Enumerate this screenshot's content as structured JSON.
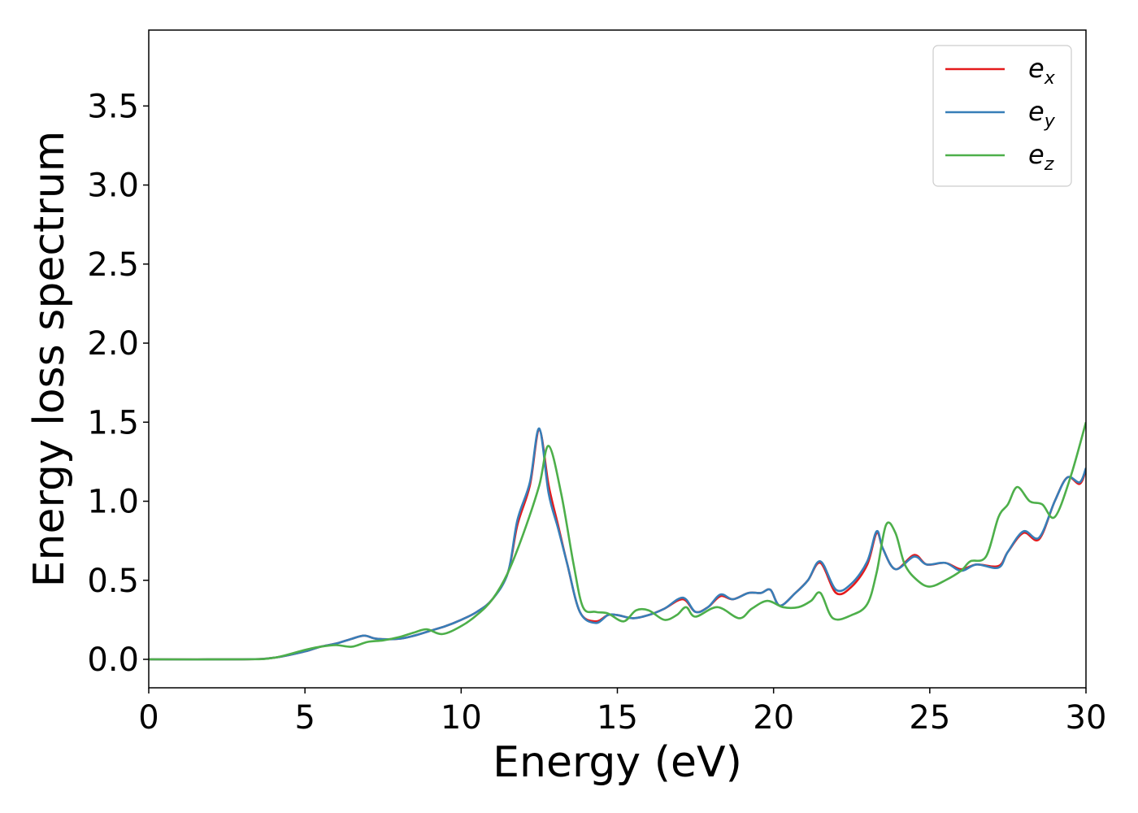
{
  "chart_data": {
    "type": "line",
    "xlabel": "Energy (eV)",
    "ylabel": "Energy loss spectrum",
    "xlim": [
      0,
      30
    ],
    "ylim": [
      -0.18,
      3.98
    ],
    "xticks": [
      0,
      5,
      10,
      15,
      20,
      25,
      30
    ],
    "xtick_labels": [
      "0",
      "5",
      "10",
      "15",
      "20",
      "25",
      "30"
    ],
    "yticks": [
      0.0,
      0.5,
      1.0,
      1.5,
      2.0,
      2.5,
      3.0,
      3.5
    ],
    "ytick_labels": [
      "0.0",
      "0.5",
      "1.0",
      "1.5",
      "2.0",
      "2.5",
      "3.0",
      "3.5"
    ],
    "grid": false,
    "legend_position": "top-right",
    "series": [
      {
        "name": "e_x",
        "legend_base": "e",
        "legend_sub": "x",
        "color": "#e41a1c",
        "points": [
          [
            0,
            0
          ],
          [
            3,
            0
          ],
          [
            4,
            0.01
          ],
          [
            5,
            0.05
          ],
          [
            5.5,
            0.08
          ],
          [
            6,
            0.1
          ],
          [
            6.5,
            0.13
          ],
          [
            6.9,
            0.15
          ],
          [
            7.3,
            0.13
          ],
          [
            8,
            0.13
          ],
          [
            8.5,
            0.15
          ],
          [
            9,
            0.18
          ],
          [
            9.5,
            0.21
          ],
          [
            10,
            0.25
          ],
          [
            10.5,
            0.3
          ],
          [
            11,
            0.38
          ],
          [
            11.5,
            0.55
          ],
          [
            11.8,
            0.85
          ],
          [
            12.2,
            1.1
          ],
          [
            12.5,
            1.45
          ],
          [
            12.8,
            1.1
          ],
          [
            13.1,
            0.85
          ],
          [
            13.4,
            0.6
          ],
          [
            13.8,
            0.3
          ],
          [
            14.3,
            0.24
          ],
          [
            14.7,
            0.28
          ],
          [
            15,
            0.28
          ],
          [
            15.5,
            0.26
          ],
          [
            16,
            0.28
          ],
          [
            16.5,
            0.32
          ],
          [
            17.1,
            0.38
          ],
          [
            17.5,
            0.3
          ],
          [
            17.9,
            0.33
          ],
          [
            18.3,
            0.4
          ],
          [
            18.7,
            0.38
          ],
          [
            19.2,
            0.42
          ],
          [
            19.6,
            0.42
          ],
          [
            19.9,
            0.44
          ],
          [
            20.2,
            0.34
          ],
          [
            20.7,
            0.42
          ],
          [
            21.1,
            0.5
          ],
          [
            21.5,
            0.61
          ],
          [
            22,
            0.42
          ],
          [
            22.5,
            0.46
          ],
          [
            23,
            0.6
          ],
          [
            23.3,
            0.8
          ],
          [
            23.5,
            0.7
          ],
          [
            23.9,
            0.57
          ],
          [
            24.5,
            0.66
          ],
          [
            24.9,
            0.6
          ],
          [
            25.5,
            0.61
          ],
          [
            26,
            0.57
          ],
          [
            26.5,
            0.6
          ],
          [
            27.2,
            0.59
          ],
          [
            27.5,
            0.68
          ],
          [
            28,
            0.8
          ],
          [
            28.5,
            0.76
          ],
          [
            29,
            1.0
          ],
          [
            29.4,
            1.15
          ],
          [
            29.8,
            1.11
          ],
          [
            30,
            1.2
          ]
        ]
      },
      {
        "name": "e_y",
        "legend_base": "e",
        "legend_sub": "y",
        "color": "#377eb8",
        "points": [
          [
            0,
            0
          ],
          [
            3,
            0
          ],
          [
            4,
            0.01
          ],
          [
            5,
            0.05
          ],
          [
            5.5,
            0.08
          ],
          [
            6,
            0.1
          ],
          [
            6.5,
            0.13
          ],
          [
            6.9,
            0.15
          ],
          [
            7.3,
            0.13
          ],
          [
            8,
            0.13
          ],
          [
            8.5,
            0.15
          ],
          [
            9,
            0.18
          ],
          [
            9.5,
            0.21
          ],
          [
            10,
            0.25
          ],
          [
            10.5,
            0.3
          ],
          [
            11,
            0.38
          ],
          [
            11.5,
            0.55
          ],
          [
            11.8,
            0.88
          ],
          [
            12.2,
            1.12
          ],
          [
            12.5,
            1.46
          ],
          [
            12.8,
            1.05
          ],
          [
            13.1,
            0.83
          ],
          [
            13.4,
            0.6
          ],
          [
            13.8,
            0.3
          ],
          [
            14.3,
            0.23
          ],
          [
            14.7,
            0.28
          ],
          [
            15,
            0.28
          ],
          [
            15.5,
            0.26
          ],
          [
            16,
            0.28
          ],
          [
            16.5,
            0.32
          ],
          [
            17.1,
            0.39
          ],
          [
            17.5,
            0.3
          ],
          [
            17.9,
            0.33
          ],
          [
            18.3,
            0.41
          ],
          [
            18.7,
            0.38
          ],
          [
            19.2,
            0.42
          ],
          [
            19.6,
            0.42
          ],
          [
            19.9,
            0.44
          ],
          [
            20.2,
            0.34
          ],
          [
            20.7,
            0.42
          ],
          [
            21.1,
            0.5
          ],
          [
            21.5,
            0.62
          ],
          [
            22,
            0.44
          ],
          [
            22.5,
            0.48
          ],
          [
            23,
            0.62
          ],
          [
            23.3,
            0.81
          ],
          [
            23.5,
            0.7
          ],
          [
            23.9,
            0.57
          ],
          [
            24.5,
            0.65
          ],
          [
            24.9,
            0.6
          ],
          [
            25.5,
            0.61
          ],
          [
            26,
            0.56
          ],
          [
            26.5,
            0.6
          ],
          [
            27.2,
            0.58
          ],
          [
            27.5,
            0.68
          ],
          [
            28,
            0.81
          ],
          [
            28.5,
            0.77
          ],
          [
            29,
            1.0
          ],
          [
            29.4,
            1.15
          ],
          [
            29.8,
            1.12
          ],
          [
            30,
            1.21
          ]
        ]
      },
      {
        "name": "e_z",
        "legend_base": "e",
        "legend_sub": "z",
        "color": "#4daf4a",
        "points": [
          [
            0,
            0
          ],
          [
            3,
            0
          ],
          [
            4,
            0.01
          ],
          [
            5,
            0.06
          ],
          [
            5.5,
            0.08
          ],
          [
            6,
            0.09
          ],
          [
            6.5,
            0.08
          ],
          [
            7,
            0.11
          ],
          [
            7.5,
            0.12
          ],
          [
            8,
            0.14
          ],
          [
            8.5,
            0.17
          ],
          [
            8.9,
            0.19
          ],
          [
            9.4,
            0.16
          ],
          [
            10,
            0.21
          ],
          [
            10.5,
            0.28
          ],
          [
            11,
            0.38
          ],
          [
            11.5,
            0.55
          ],
          [
            12,
            0.8
          ],
          [
            12.5,
            1.1
          ],
          [
            12.8,
            1.35
          ],
          [
            13.2,
            1.05
          ],
          [
            13.6,
            0.6
          ],
          [
            13.9,
            0.33
          ],
          [
            14.3,
            0.3
          ],
          [
            14.7,
            0.29
          ],
          [
            15.2,
            0.24
          ],
          [
            15.6,
            0.31
          ],
          [
            16,
            0.31
          ],
          [
            16.5,
            0.25
          ],
          [
            16.9,
            0.28
          ],
          [
            17.2,
            0.33
          ],
          [
            17.5,
            0.27
          ],
          [
            18.2,
            0.33
          ],
          [
            18.9,
            0.26
          ],
          [
            19.3,
            0.32
          ],
          [
            19.8,
            0.37
          ],
          [
            20.3,
            0.33
          ],
          [
            20.8,
            0.33
          ],
          [
            21.2,
            0.37
          ],
          [
            21.5,
            0.42
          ],
          [
            21.9,
            0.26
          ],
          [
            22.5,
            0.28
          ],
          [
            23,
            0.35
          ],
          [
            23.3,
            0.55
          ],
          [
            23.6,
            0.85
          ],
          [
            23.9,
            0.8
          ],
          [
            24.2,
            0.6
          ],
          [
            24.6,
            0.5
          ],
          [
            25,
            0.46
          ],
          [
            25.5,
            0.5
          ],
          [
            26,
            0.56
          ],
          [
            26.3,
            0.62
          ],
          [
            26.8,
            0.65
          ],
          [
            27.2,
            0.9
          ],
          [
            27.5,
            0.98
          ],
          [
            27.8,
            1.09
          ],
          [
            28.2,
            1.0
          ],
          [
            28.6,
            0.98
          ],
          [
            29,
            0.9
          ],
          [
            29.5,
            1.15
          ],
          [
            30,
            1.5
          ]
        ]
      }
    ]
  }
}
